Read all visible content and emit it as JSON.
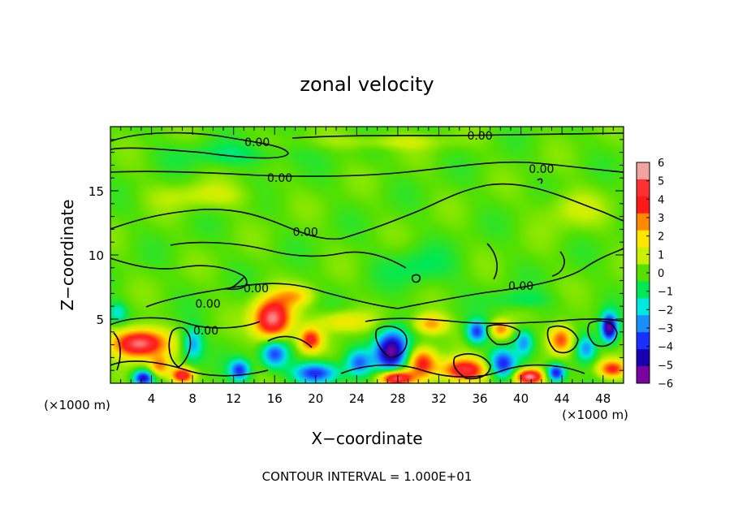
{
  "chart_data": {
    "type": "heatmap",
    "title": "zonal velocity",
    "xlabel": "X−coordinate",
    "ylabel": "Z−coordinate",
    "x_unit_left": "(×1000 m)",
    "x_unit_right": "(×1000 m)",
    "footer": "CONTOUR INTERVAL = 1.000E+01",
    "xlim": [
      0,
      50
    ],
    "ylim": [
      0,
      20
    ],
    "x_ticks": [
      4,
      8,
      12,
      16,
      20,
      24,
      28,
      32,
      36,
      40,
      44,
      48
    ],
    "y_ticks": [
      5,
      10,
      15
    ],
    "colorbar": {
      "range": [
        -6,
        6
      ],
      "ticks": [
        "6",
        "5",
        "4",
        "3",
        "2",
        "1",
        "0",
        "−1",
        "−2",
        "−3",
        "−4",
        "−5",
        "−6"
      ],
      "colors": [
        "#f4a3a3",
        "#ff3030",
        "#ff1a1a",
        "#ff8a00",
        "#ffe600",
        "#c8f000",
        "#55e000",
        "#00e855",
        "#00e8e0",
        "#1a90ff",
        "#1a30ff",
        "#1a00b0",
        "#7a00a0"
      ]
    },
    "contour_labels": [
      {
        "text": "0.00",
        "x": 14.3,
        "z": 18.8
      },
      {
        "text": "0.00",
        "x": 36.0,
        "z": 19.3
      },
      {
        "text": "0.00",
        "x": 16.5,
        "z": 16.0
      },
      {
        "text": "0.00",
        "x": 42.0,
        "z": 16.7
      },
      {
        "text": "0.00",
        "x": 19.0,
        "z": 11.8
      },
      {
        "text": "0.00",
        "x": 14.2,
        "z": 7.4
      },
      {
        "text": "0.00",
        "x": 9.5,
        "z": 6.2
      },
      {
        "text": "0.00",
        "x": 9.3,
        "z": 4.1
      },
      {
        "text": "0.00",
        "x": 40.0,
        "z": 7.6
      }
    ],
    "features": [
      {
        "x": 2.8,
        "z": 3.1,
        "rx": 2.6,
        "rz": 1.1,
        "v": 6
      },
      {
        "x": 15.8,
        "z": 5.0,
        "rx": 1.8,
        "rz": 1.6,
        "v": 6
      },
      {
        "x": 27.4,
        "z": 2.5,
        "rx": 1.6,
        "rz": 1.6,
        "v": -6
      },
      {
        "x": 34.5,
        "z": 1.0,
        "rx": 2.2,
        "rz": 0.9,
        "v": 5
      },
      {
        "x": 27.8,
        "z": 0.4,
        "rx": 1.6,
        "rz": 0.6,
        "v": 6
      },
      {
        "x": 40.8,
        "z": 0.5,
        "rx": 1.4,
        "rz": 0.6,
        "v": 6
      },
      {
        "x": 43.9,
        "z": 3.4,
        "rx": 1.2,
        "rz": 1.1,
        "v": 4
      },
      {
        "x": 48.6,
        "z": 4.3,
        "rx": 0.8,
        "rz": 1.1,
        "v": -6
      },
      {
        "x": 48.9,
        "z": 1.1,
        "rx": 1.4,
        "rz": 0.7,
        "v": 4
      },
      {
        "x": 7.0,
        "z": 0.6,
        "rx": 1.1,
        "rz": 0.6,
        "v": 5
      },
      {
        "x": 3.2,
        "z": 0.4,
        "rx": 1.0,
        "rz": 0.6,
        "v": -5
      },
      {
        "x": 8.0,
        "z": 3.0,
        "rx": 1.0,
        "rz": 1.3,
        "v": -3
      },
      {
        "x": 12.6,
        "z": 1.0,
        "rx": 1.0,
        "rz": 0.8,
        "v": -4
      },
      {
        "x": 16.0,
        "z": 2.3,
        "rx": 1.3,
        "rz": 1.1,
        "v": -4
      },
      {
        "x": 19.5,
        "z": 3.4,
        "rx": 1.1,
        "rz": 0.9,
        "v": 4
      },
      {
        "x": 20.0,
        "z": 0.8,
        "rx": 2.2,
        "rz": 0.8,
        "v": -4
      },
      {
        "x": 24.2,
        "z": 1.6,
        "rx": 1.2,
        "rz": 1.0,
        "v": -3
      },
      {
        "x": 30.4,
        "z": 1.6,
        "rx": 1.4,
        "rz": 1.2,
        "v": 4
      },
      {
        "x": 31.2,
        "z": 4.6,
        "rx": 1.6,
        "rz": 0.8,
        "v": 3
      },
      {
        "x": 35.7,
        "z": 4.0,
        "rx": 1.0,
        "rz": 0.9,
        "v": -4
      },
      {
        "x": 38.2,
        "z": 1.5,
        "rx": 1.3,
        "rz": 1.1,
        "v": -4
      },
      {
        "x": 43.4,
        "z": 0.8,
        "rx": 0.9,
        "rz": 0.7,
        "v": -5
      },
      {
        "x": 40.3,
        "z": 3.2,
        "rx": 0.9,
        "rz": 1.0,
        "v": -3
      },
      {
        "x": 46.4,
        "z": 2.7,
        "rx": 1.0,
        "rz": 1.0,
        "v": -3
      },
      {
        "x": 38.0,
        "z": 4.2,
        "rx": 1.0,
        "rz": 0.7,
        "v": 3
      },
      {
        "x": 0.7,
        "z": 5.5,
        "rx": 0.9,
        "rz": 0.8,
        "v": -2
      },
      {
        "x": 4.8,
        "z": 1.3,
        "rx": 1.0,
        "rz": 0.8,
        "v": 3
      },
      {
        "x": 22.7,
        "z": 4.8,
        "rx": 2.6,
        "rz": 0.8,
        "v": 2
      },
      {
        "x": 18.0,
        "z": 6.8,
        "rx": 1.8,
        "rz": 0.8,
        "v": 2
      },
      {
        "x": 40.0,
        "z": 6.5,
        "rx": 3.0,
        "rz": 0.7,
        "v": -1
      },
      {
        "x": 12.0,
        "z": 17.8,
        "rx": 6.0,
        "rz": 0.9,
        "v": -1
      },
      {
        "x": 9.0,
        "z": 14.6,
        "rx": 5.0,
        "rz": 1.0,
        "v": 1
      },
      {
        "x": 27.0,
        "z": 18.8,
        "rx": 6.0,
        "rz": 0.6,
        "v": 1
      },
      {
        "x": 45.0,
        "z": 13.6,
        "rx": 3.0,
        "rz": 1.5,
        "v": 1
      },
      {
        "x": 30.0,
        "z": 9.0,
        "rx": 3.5,
        "rz": 1.5,
        "v": -1
      }
    ]
  }
}
